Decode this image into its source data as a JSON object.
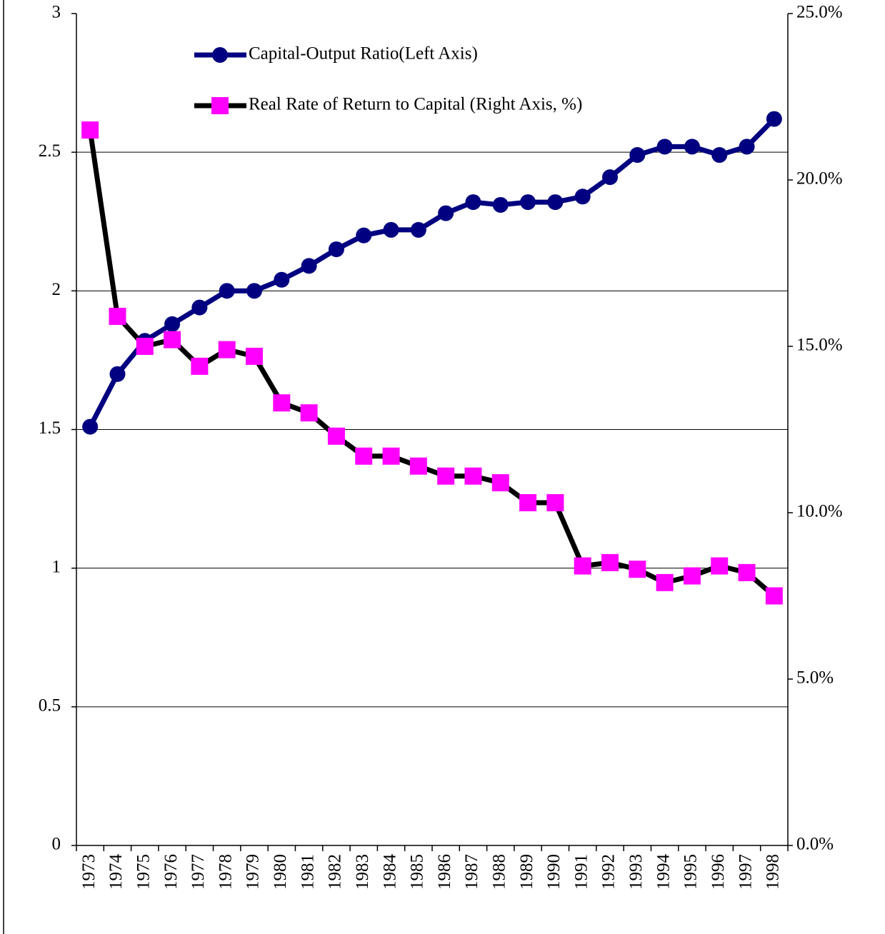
{
  "chart_data": {
    "type": "line",
    "categories": [
      "1973",
      "1974",
      "1975",
      "1976",
      "1977",
      "1978",
      "1979",
      "1980",
      "1981",
      "1982",
      "1983",
      "1984",
      "1985",
      "1986",
      "1987",
      "1988",
      "1989",
      "1990",
      "1991",
      "1992",
      "1993",
      "1994",
      "1995",
      "1996",
      "1997",
      "1998"
    ],
    "series": [
      {
        "name": "Capital-Output Ratio(Left Axis)",
        "color": "#000080",
        "line_color": "#000080",
        "marker": "circle",
        "values": [
          1.51,
          1.7,
          1.82,
          1.88,
          1.94,
          2.0,
          2.0,
          2.04,
          2.09,
          2.15,
          2.2,
          2.22,
          2.22,
          2.28,
          2.32,
          2.31,
          2.32,
          2.32,
          2.34,
          2.41,
          2.49,
          2.52,
          2.52,
          2.49,
          2.52,
          2.62
        ]
      },
      {
        "name": "Real Rate of Return to Capital (Right Axis, %)",
        "color": "#ff00ff",
        "line_color": "#000000",
        "marker": "square",
        "axis": "y2",
        "values": [
          21.5,
          15.9,
          15.0,
          15.2,
          14.4,
          14.9,
          14.7,
          13.3,
          13.0,
          12.3,
          11.7,
          11.7,
          11.4,
          11.1,
          11.1,
          10.9,
          10.3,
          10.3,
          8.4,
          8.5,
          8.3,
          7.9,
          8.1,
          8.4,
          8.2,
          7.5
        ]
      }
    ],
    "ylim": [
      0,
      3
    ],
    "yticks": [
      0,
      0.5,
      1,
      1.5,
      2,
      2.5,
      3
    ],
    "y2lim": [
      0,
      25
    ],
    "y2ticks": [
      {
        "value": 0,
        "label": "0.0%"
      },
      {
        "value": 5,
        "label": "5.0%"
      },
      {
        "value": 10,
        "label": "10.0%"
      },
      {
        "value": 15,
        "label": "15.0%"
      },
      {
        "value": 20,
        "label": "20.0%"
      },
      {
        "value": 25,
        "label": "25.0%"
      }
    ],
    "grid": true
  }
}
